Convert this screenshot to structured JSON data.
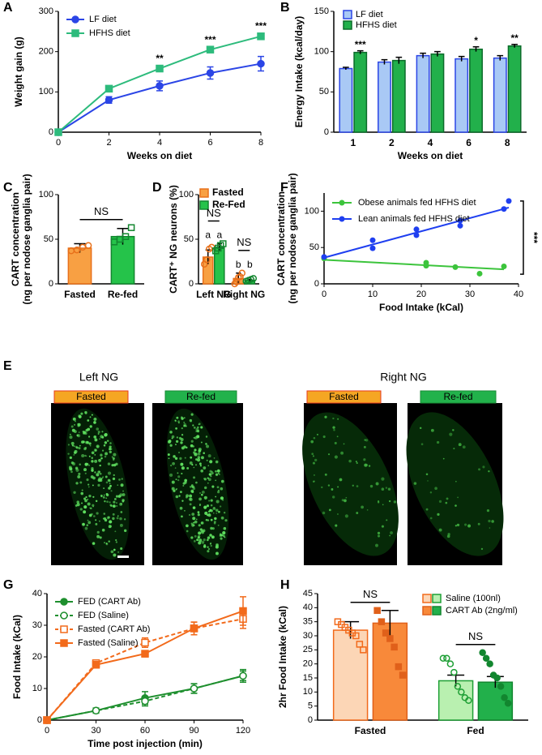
{
  "chart_data": [
    {
      "panel": "A",
      "type": "line",
      "xlabel": "Weeks on diet",
      "ylabel": "Weight gain (g)",
      "x": [
        0,
        2,
        4,
        6,
        8
      ],
      "xlim": [
        0,
        8
      ],
      "xticks": [
        0,
        2,
        4,
        6,
        8
      ],
      "ylim": [
        0,
        300
      ],
      "yticks": [
        0,
        100,
        200,
        300
      ],
      "legend": "upper left",
      "series": [
        {
          "name": "LF diet",
          "color": "#2b45e6",
          "marker": "circle",
          "filled": true,
          "dashed": false,
          "values": [
            0,
            80,
            115,
            147,
            170
          ],
          "errors": [
            0,
            8,
            12,
            15,
            18
          ]
        },
        {
          "name": "HFHS diet",
          "color": "#2dbb7c",
          "marker": "square",
          "filled": true,
          "dashed": false,
          "values": [
            0,
            108,
            158,
            205,
            238
          ],
          "errors": [
            0,
            4,
            5,
            5,
            6
          ]
        }
      ],
      "significance": [
        null,
        null,
        "**",
        "***",
        "***"
      ]
    },
    {
      "panel": "B",
      "type": "bar",
      "xlabel": "Weeks on diet",
      "ylabel": "Energy Intake  (kcal/day)",
      "categories": [
        "1",
        "2",
        "4",
        "6",
        "8"
      ],
      "ylim": [
        0,
        150
      ],
      "yticks": [
        0,
        50,
        100,
        150
      ],
      "legend": "upper left",
      "series": [
        {
          "name": "LF diet",
          "colors": [
            "#a9c9f5",
            "#a9c9f5",
            "#a9c9f5",
            "#a9c9f5",
            "#a9c9f5"
          ],
          "edges": [
            "#2b45e6",
            "#2b45e6",
            "#2b45e6",
            "#2b45e6",
            "#2b45e6"
          ],
          "values": [
            79,
            87,
            95,
            91,
            92
          ],
          "errors": [
            1.5,
            3,
            3,
            3,
            3
          ]
        },
        {
          "name": "HFHS diet",
          "colors": [
            "#22b04b",
            "#22b04b",
            "#22b04b",
            "#22b04b",
            "#22b04b"
          ],
          "edges": [
            "#0b6b2a",
            "#0b6b2a",
            "#0b6b2a",
            "#0b6b2a",
            "#0b6b2a"
          ],
          "values": [
            99,
            89,
            97,
            103,
            107
          ],
          "errors": [
            2,
            4,
            3,
            3,
            2
          ]
        }
      ],
      "significance": [
        "***",
        null,
        null,
        "*",
        "**"
      ]
    },
    {
      "panel": "C",
      "type": "bar",
      "ylabel": [
        "CART concentration",
        "(ng per nodose ganglia pair)"
      ],
      "categories": [
        "Fasted",
        "Re-fed"
      ],
      "ylim": [
        0,
        100
      ],
      "yticks": [
        0,
        50,
        100
      ],
      "series": [
        {
          "colors": [
            "#f8a043",
            "#25c34a"
          ],
          "edges": [
            "#e8701a",
            "#12862f"
          ],
          "values": [
            40,
            53
          ],
          "errors": [
            5,
            9
          ],
          "point_marker": [
            "circle",
            "square"
          ],
          "point_filled": false,
          "points": [
            [
              37,
              38,
              41,
              43
            ],
            [
              47,
              50,
              53,
              63
            ]
          ]
        }
      ],
      "comparison_label": "NS"
    },
    {
      "panel": "D",
      "type": "bar",
      "ylabel": "CART⁺ NG neurons (%)",
      "categories": [
        "Left NG",
        "Right NG"
      ],
      "ylim": [
        0,
        100
      ],
      "yticks": [
        0,
        50,
        100
      ],
      "legend": "top",
      "series": [
        {
          "name": "Fasted",
          "colors": [
            "#f8a043",
            "#f8a043"
          ],
          "edges": [
            "#e8701a",
            "#e8701a"
          ],
          "values": [
            30,
            6
          ],
          "errors": [
            8,
            6
          ],
          "point_marker": [
            "circle",
            "circle"
          ],
          "point_filled": false,
          "points": [
            [
              22,
              27,
              39,
              41
            ],
            [
              0,
              2,
              7,
              8,
              12
            ]
          ],
          "letters": [
            "a",
            "b"
          ]
        },
        {
          "name": "Re-Fed",
          "colors": [
            "#25c34a",
            "#25c34a"
          ],
          "edges": [
            "#12862f",
            "#12862f"
          ],
          "values": [
            41,
            4
          ],
          "errors": [
            4,
            1
          ],
          "point_marker": [
            "square",
            "circle"
          ],
          "point_filled": false,
          "points": [
            [
              37,
              40,
              43,
              45
            ],
            [
              3,
              4,
              5,
              6
            ]
          ],
          "letters": [
            "a",
            "b"
          ]
        }
      ],
      "ns_labels": [
        "NS",
        "NS"
      ]
    },
    {
      "panel": "F",
      "type": "scatter",
      "xlabel": "Food Intake (kCal)",
      "ylabel": [
        "CART concentration",
        "(ng per nodose ganglia pair)"
      ],
      "xlim": [
        0,
        40
      ],
      "xticks": [
        0,
        10,
        20,
        30,
        40
      ],
      "ylim": [
        0,
        125
      ],
      "yticks": [
        0,
        50,
        100
      ],
      "legend": "upper left",
      "series": [
        {
          "name": "Obese animals fed HFHS diet",
          "color": "#3cc43c",
          "x": [
            0,
            21,
            21,
            27,
            32,
            37
          ],
          "values": [
            35,
            25,
            29,
            23,
            14,
            24
          ],
          "fit": {
            "x": [
              0,
              37
            ],
            "y": [
              33,
              20
            ]
          }
        },
        {
          "name": "Lean animals fed HFHS diet",
          "color": "#1f3ff0",
          "x": [
            0,
            10,
            10,
            19,
            19,
            28,
            28,
            37,
            38
          ],
          "values": [
            37,
            60,
            49,
            75,
            67,
            87,
            80,
            103,
            114
          ],
          "fit": {
            "x": [
              0,
              38
            ],
            "y": [
              36,
              105
            ]
          }
        }
      ],
      "annotation": "***"
    },
    {
      "panel": "G",
      "type": "line",
      "xlabel": "Time post injection (min)",
      "ylabel": "Food Intake  (kCal)",
      "x": [
        0,
        30,
        60,
        90,
        120
      ],
      "xlim": [
        0,
        120
      ],
      "xticks": [
        0,
        30,
        60,
        90,
        120
      ],
      "ylim": [
        0,
        40
      ],
      "yticks": [
        0,
        10,
        20,
        30,
        40
      ],
      "legend": "upper left",
      "series": [
        {
          "name": "FED (CART Ab)",
          "color": "#1e8f2e",
          "marker": "circle",
          "filled": true,
          "dashed": false,
          "values": [
            0,
            3,
            7,
            10,
            14
          ],
          "errors": [
            0,
            0.8,
            2,
            1.5,
            2
          ]
        },
        {
          "name": "FED (Saline)",
          "color": "#1e8f2e",
          "marker": "circle",
          "filled": false,
          "dashed": true,
          "values": [
            0,
            3,
            6,
            10,
            14
          ],
          "errors": [
            0,
            0.8,
            1.5,
            1.5,
            1.5
          ]
        },
        {
          "name": "Fasted (CART Ab)",
          "color": "#f26a1b",
          "marker": "square",
          "filled": false,
          "dashed": true,
          "values": [
            0,
            18,
            24.5,
            29,
            32
          ],
          "errors": [
            0,
            1,
            1.5,
            2,
            3
          ]
        },
        {
          "name": "Fasted (Saline)",
          "color": "#f26a1b",
          "marker": "square",
          "filled": true,
          "dashed": false,
          "values": [
            0,
            17.5,
            21,
            29,
            34.5
          ],
          "errors": [
            0,
            1,
            1,
            2,
            4.5
          ]
        }
      ]
    },
    {
      "panel": "H",
      "type": "bar",
      "ylabel": "2hr Food Intake (kCal)",
      "categories": [
        "Fasted",
        "Fed"
      ],
      "ylim": [
        0,
        45
      ],
      "yticks": [
        0,
        5,
        10,
        15,
        20,
        25,
        30,
        35,
        40,
        45
      ],
      "legend": "upper right",
      "series": [
        {
          "name": "Saline (100nl)",
          "colors": [
            "#fcd6b6",
            "#b9f0b0"
          ],
          "edges": [
            "#f26a1b",
            "#1e9f35"
          ],
          "values": [
            32,
            14
          ],
          "errors": [
            3,
            2
          ],
          "point_marker": [
            "square",
            "circle"
          ],
          "point_filled": false,
          "points": [
            [
              35,
              34,
              33,
              32,
              31,
              30,
              27,
              25
            ],
            [
              22,
              22,
              20,
              17,
              12,
              10,
              8,
              7
            ]
          ]
        },
        {
          "name": "CART Ab (2ng/ml)",
          "colors": [
            "#f8893a",
            "#22b04b"
          ],
          "edges": [
            "#e0601a",
            "#12862f"
          ],
          "values": [
            34.5,
            13.5
          ],
          "errors": [
            4.5,
            2
          ],
          "point_marker": [
            "square",
            "circle"
          ],
          "point_filled": true,
          "points": [
            [
              39,
              35,
              31,
              29,
              26,
              19,
              16
            ],
            [
              24,
              22,
              20,
              16,
              15,
              12,
              8,
              6
            ]
          ]
        }
      ],
      "ns_labels": [
        "NS",
        "NS"
      ]
    }
  ],
  "images": {
    "panel": "E",
    "groups": [
      "Left NG",
      "Right NG"
    ],
    "tags": [
      "Fasted",
      "Re-fed",
      "Fasted",
      "Re-fed"
    ]
  }
}
